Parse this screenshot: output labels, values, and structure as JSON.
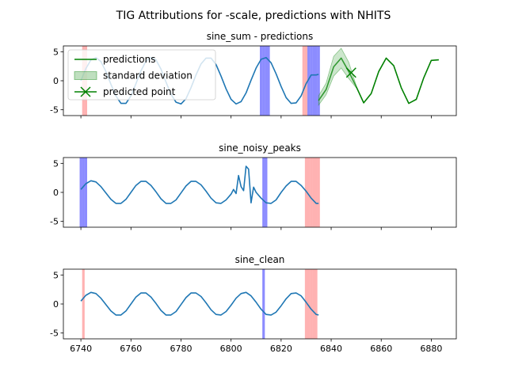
{
  "figure": {
    "suptitle": "TIG Attributions for -scale, predictions with NHITS"
  },
  "colors": {
    "actual": "#1f77b4",
    "prediction": "#008000",
    "std_fill": "#80c080",
    "attr_positive": "#ff0000",
    "attr_negative": "#0000ff"
  },
  "chart_data": [
    {
      "type": "line",
      "title": "sine_sum - predictions",
      "xlim": [
        6733,
        6890
      ],
      "ylim": [
        -6,
        6
      ],
      "xticks": [
        6740,
        6760,
        6780,
        6800,
        6820,
        6840,
        6860,
        6880
      ],
      "yticks": [
        -5,
        0,
        5
      ],
      "xticklabels_visible": false,
      "grid": false,
      "legend": {
        "position": "upper-left",
        "entries": [
          "predictions",
          "standard deviation",
          "predicted point"
        ]
      },
      "series": [
        {
          "name": "actual",
          "x": [
            6740,
            6742,
            6744,
            6746,
            6748,
            6750,
            6752,
            6754,
            6756,
            6758,
            6760,
            6762,
            6764,
            6766,
            6768,
            6770,
            6772,
            6774,
            6776,
            6778,
            6780,
            6782,
            6784,
            6786,
            6788,
            6790,
            6792,
            6794,
            6796,
            6798,
            6800,
            6802,
            6804,
            6806,
            6808,
            6810,
            6812,
            6814,
            6816,
            6818,
            6820,
            6822,
            6824,
            6826,
            6828,
            6830,
            6832,
            6834,
            6835
          ],
          "y": [
            0.0,
            2.1,
            3.6,
            4.0,
            3.3,
            1.6,
            -0.6,
            -2.6,
            -3.9,
            -3.9,
            -2.6,
            -0.5,
            1.7,
            3.4,
            4.0,
            3.6,
            2.0,
            -0.2,
            -2.3,
            -3.7,
            -4.0,
            -3.1,
            -1.2,
            1.0,
            2.9,
            3.9,
            3.9,
            2.8,
            0.8,
            -1.4,
            -3.2,
            -4.0,
            -3.6,
            -2.1,
            0.1,
            2.2,
            3.7,
            4.0,
            3.1,
            1.2,
            -1.0,
            -2.9,
            -3.9,
            -3.8,
            -2.6,
            -0.5,
            1.0,
            1.0,
            1.1
          ]
        },
        {
          "name": "predictions",
          "x": [
            6835,
            6838,
            6841,
            6844,
            6847,
            6850,
            6853,
            6856,
            6859,
            6862,
            6865,
            6868,
            6871,
            6874,
            6877,
            6880,
            6883
          ],
          "y": [
            -3.4,
            -1.5,
            2.4,
            3.9,
            1.6,
            -1.0,
            -3.8,
            -2.2,
            1.6,
            3.9,
            2.6,
            -1.2,
            -3.9,
            -3.2,
            0.5,
            3.5,
            3.6
          ]
        },
        {
          "name": "standard deviation",
          "x": [
            6835,
            6838,
            6841,
            6844,
            6847,
            6850
          ],
          "y_low": [
            -4.2,
            -2.4,
            0.8,
            2.2,
            0.4,
            -1.2
          ],
          "y_high": [
            -2.6,
            -0.4,
            4.2,
            5.6,
            3.2,
            -0.8
          ]
        },
        {
          "name": "predicted point",
          "x": [
            6848
          ],
          "y": [
            1.4
          ]
        }
      ],
      "attributions": {
        "positive_x": [
          6741,
          6742,
          6829,
          6830
        ],
        "negative_x": [
          6812,
          6813,
          6814,
          6815,
          6831,
          6832,
          6833,
          6834,
          6835
        ]
      }
    },
    {
      "type": "line",
      "title": "sine_noisy_peaks",
      "xlim": [
        6733,
        6890
      ],
      "ylim": [
        -6,
        6
      ],
      "xticks": [
        6740,
        6760,
        6780,
        6800,
        6820,
        6840,
        6860,
        6880
      ],
      "yticks": [
        -5,
        0,
        5
      ],
      "xticklabels_visible": false,
      "grid": false,
      "series": [
        {
          "name": "actual",
          "x": [
            6740,
            6742,
            6744,
            6746,
            6748,
            6750,
            6752,
            6754,
            6756,
            6758,
            6760,
            6762,
            6764,
            6766,
            6768,
            6770,
            6772,
            6774,
            6776,
            6778,
            6780,
            6782,
            6784,
            6786,
            6788,
            6790,
            6792,
            6794,
            6796,
            6798,
            6800,
            6801,
            6802,
            6803,
            6804,
            6805,
            6806,
            6807,
            6808,
            6809,
            6810,
            6812,
            6814,
            6816,
            6818,
            6820,
            6822,
            6824,
            6826,
            6828,
            6830,
            6832,
            6834,
            6835
          ],
          "y": [
            0.5,
            1.5,
            2.0,
            1.8,
            1.0,
            -0.1,
            -1.2,
            -1.9,
            -1.9,
            -1.2,
            0.0,
            1.2,
            1.9,
            1.9,
            1.2,
            0.1,
            -1.1,
            -1.9,
            -1.9,
            -1.3,
            -0.1,
            1.1,
            1.9,
            1.9,
            1.3,
            0.2,
            -1.0,
            -1.8,
            -1.9,
            -1.3,
            -0.3,
            0.5,
            -0.2,
            2.9,
            1.0,
            0.3,
            4.5,
            4.0,
            -1.8,
            0.9,
            0.0,
            -1.0,
            -1.8,
            -1.9,
            -1.3,
            0.0,
            1.1,
            1.9,
            1.9,
            1.2,
            0.2,
            -1.0,
            -1.9,
            -1.9
          ]
        }
      ],
      "attributions": {
        "positive_x": [
          6830,
          6831,
          6832,
          6833,
          6834,
          6835
        ],
        "negative_x": [
          6740,
          6741,
          6742,
          6813,
          6814
        ]
      }
    },
    {
      "type": "line",
      "title": "sine_clean",
      "xlim": [
        6733,
        6890
      ],
      "ylim": [
        -6,
        6
      ],
      "xticks": [
        6740,
        6760,
        6780,
        6800,
        6820,
        6840,
        6860,
        6880
      ],
      "yticks": [
        -5,
        0,
        5
      ],
      "xticklabels": [
        "6740",
        "6760",
        "6780",
        "6800",
        "6820",
        "6840",
        "6860",
        "6880"
      ],
      "xticklabels_visible": true,
      "grid": false,
      "series": [
        {
          "name": "actual",
          "x": [
            6740,
            6742,
            6744,
            6746,
            6748,
            6750,
            6752,
            6754,
            6756,
            6758,
            6760,
            6762,
            6764,
            6766,
            6768,
            6770,
            6772,
            6774,
            6776,
            6778,
            6780,
            6782,
            6784,
            6786,
            6788,
            6790,
            6792,
            6794,
            6796,
            6798,
            6800,
            6802,
            6804,
            6806,
            6808,
            6810,
            6812,
            6814,
            6816,
            6818,
            6820,
            6822,
            6824,
            6826,
            6828,
            6830,
            6832,
            6834,
            6835
          ],
          "y": [
            0.5,
            1.5,
            2.0,
            1.8,
            1.0,
            -0.1,
            -1.2,
            -1.9,
            -1.9,
            -1.2,
            0.0,
            1.2,
            1.9,
            1.9,
            1.2,
            0.1,
            -1.1,
            -1.9,
            -1.9,
            -1.3,
            -0.1,
            1.1,
            1.9,
            1.9,
            1.3,
            0.2,
            -1.0,
            -1.8,
            -1.9,
            -1.3,
            -0.2,
            1.0,
            1.8,
            2.0,
            1.4,
            0.3,
            -0.9,
            -1.8,
            -1.9,
            -1.4,
            -0.3,
            0.9,
            1.8,
            1.9,
            1.4,
            0.3,
            -0.9,
            -1.8,
            -1.9
          ]
        }
      ],
      "attributions": {
        "positive_x": [
          6741,
          6830,
          6831,
          6832,
          6833,
          6834
        ],
        "negative_x": [
          6813
        ]
      }
    }
  ]
}
